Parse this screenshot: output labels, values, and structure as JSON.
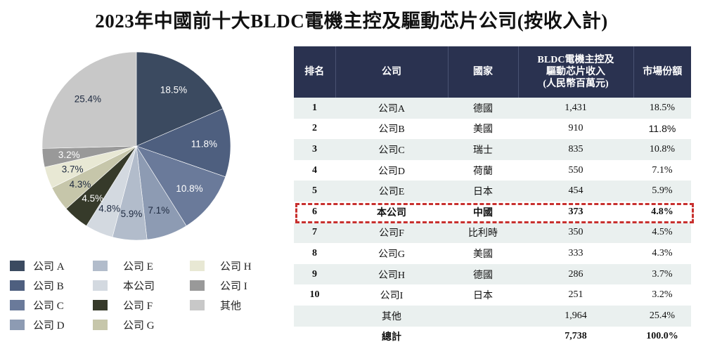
{
  "title": "2023年中國前十大BLDC電機主控及驅動芯片公司(按收入計)",
  "chart_data": {
    "type": "pie",
    "title": "2023年中國前十大BLDC電機主控及驅動芯片公司(按收入計)",
    "categories": [
      "公司 A",
      "公司 B",
      "公司 C",
      "公司 D",
      "公司 E",
      "本公司",
      "公司 F",
      "公司 G",
      "公司 H",
      "公司 I",
      "其他"
    ],
    "values": [
      18.5,
      11.8,
      10.8,
      7.1,
      5.9,
      4.8,
      4.5,
      4.3,
      3.7,
      3.2,
      25.4
    ],
    "labels": [
      "18.5%",
      "11.8%",
      "10.8%",
      "7.1%",
      "5.9%",
      "4.8%",
      "4.5%",
      "4.3%",
      "3.7%",
      "3.2%",
      "25.4%"
    ],
    "colors": [
      "#3b4a60",
      "#4e5f7f",
      "#6a7a9a",
      "#8d9bb3",
      "#b2bccb",
      "#d3d9e0",
      "#363a2a",
      "#c6c6aa",
      "#e8e8d4",
      "#999999",
      "#c8c8c8"
    ],
    "label_colors": [
      "#ffffff",
      "#ffffff",
      "#ffffff",
      "#1e2a40",
      "#1e2a40",
      "#1e2a40",
      "#ffffff",
      "#1e2a40",
      "#1e2a40",
      "#ffffff",
      "#1e2a40"
    ],
    "start_angle_deg": 0,
    "direction": "clockwise",
    "legend_position": "bottom"
  },
  "legend": [
    {
      "label": "公司 A",
      "color": "#3b4a60"
    },
    {
      "label": "公司 B",
      "color": "#4e5f7f"
    },
    {
      "label": "公司 C",
      "color": "#6a7a9a"
    },
    {
      "label": "公司 D",
      "color": "#8d9bb3"
    },
    {
      "label": "公司 E",
      "color": "#b2bccb"
    },
    {
      "label": "本公司",
      "color": "#d3d9e0"
    },
    {
      "label": "公司 F",
      "color": "#363a2a"
    },
    {
      "label": "公司 G",
      "color": "#c6c6aa"
    },
    {
      "label": "公司 H",
      "color": "#e8e8d4"
    },
    {
      "label": "公司 I",
      "color": "#999999"
    },
    {
      "label": "其他",
      "color": "#c8c8c8"
    }
  ],
  "table": {
    "headers": [
      "排名",
      "公司",
      "國家",
      "BLDC電機主控及\n驅動芯片收入\n(人民幣百萬元)",
      "市場份額"
    ],
    "header_line1": "BLDC電機主控及",
    "header_line2": "驅動芯片收入",
    "header_line3": "(人民幣百萬元)",
    "rows": [
      {
        "rank": "1",
        "company": "公司A",
        "country": "德國",
        "revenue": "1,431",
        "share": "18.5%"
      },
      {
        "rank": "2",
        "company": "公司B",
        "country": "美國",
        "revenue": "910",
        "share": "11.8%"
      },
      {
        "rank": "3",
        "company": "公司C",
        "country": "瑞士",
        "revenue": "835",
        "share": "10.8%"
      },
      {
        "rank": "4",
        "company": "公司D",
        "country": "荷蘭",
        "revenue": "550",
        "share": "7.1%"
      },
      {
        "rank": "5",
        "company": "公司E",
        "country": "日本",
        "revenue": "454",
        "share": "5.9%"
      },
      {
        "rank": "6",
        "company": "本公司",
        "country": "中國",
        "revenue": "373",
        "share": "4.8%"
      },
      {
        "rank": "7",
        "company": "公司F",
        "country": "比利時",
        "revenue": "350",
        "share": "4.5%"
      },
      {
        "rank": "8",
        "company": "公司G",
        "country": "美國",
        "revenue": "333",
        "share": "4.3%"
      },
      {
        "rank": "9",
        "company": "公司H",
        "country": "德國",
        "revenue": "286",
        "share": "3.7%"
      },
      {
        "rank": "10",
        "company": "公司I",
        "country": "日本",
        "revenue": "251",
        "share": "3.2%"
      },
      {
        "rank": "",
        "company": "其他",
        "country": "",
        "revenue": "1,964",
        "share": "25.4%"
      },
      {
        "rank": "",
        "company": "總計",
        "country": "",
        "revenue": "7,738",
        "share": "100.0%"
      }
    ],
    "highlight_row_index": 5,
    "highlight_color": "#c8302e"
  }
}
